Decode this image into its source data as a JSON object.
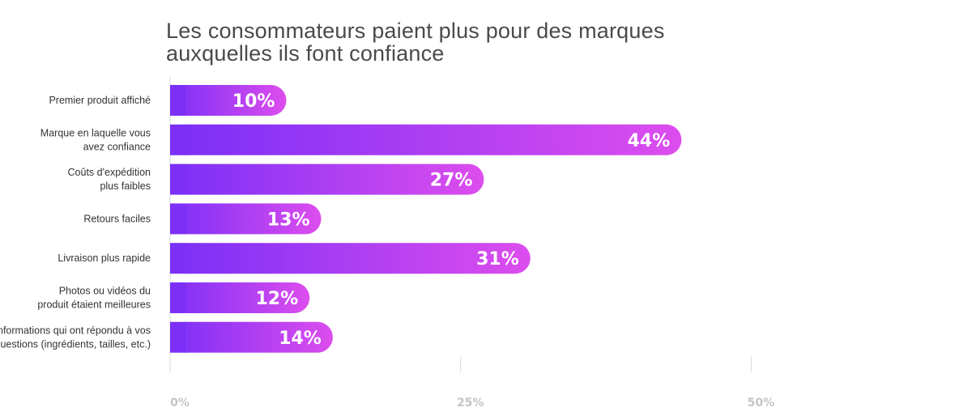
{
  "title_lines": [
    "Les consommateurs paient plus pour des marques",
    "auxquelles ils font confiance"
  ],
  "colors": {
    "bar_start": "#7b2ff7",
    "bar_end": "#dd4dee",
    "axis": "#d9d9d9",
    "tick_text": "#c4c4c4"
  },
  "chart_data": {
    "type": "bar",
    "orientation": "horizontal",
    "title": "Les consommateurs paient plus pour des marques auxquelles ils font confiance",
    "categories": [
      [
        "Premier produit affiché"
      ],
      [
        "Marque en laquelle vous",
        "avez confiance"
      ],
      [
        "Coûts d'expédition",
        "plus faibles"
      ],
      [
        "Retours faciles"
      ],
      [
        "Livraison plus rapide"
      ],
      [
        "Photos ou vidéos du",
        "produit étaient meilleures"
      ],
      [
        "Informations qui ont répondu à vos",
        "questions (ingrédients, tailles, etc.)"
      ]
    ],
    "values": [
      10,
      44,
      27,
      13,
      31,
      12,
      14
    ],
    "value_labels": [
      "10%",
      "44%",
      "27%",
      "13%",
      "31%",
      "12%",
      "14%"
    ],
    "xticks": [
      0,
      25,
      50
    ],
    "xtick_labels": [
      "0%",
      "25%",
      "50%"
    ],
    "xlim": [
      0,
      69
    ],
    "grid": false,
    "legend": "none"
  }
}
